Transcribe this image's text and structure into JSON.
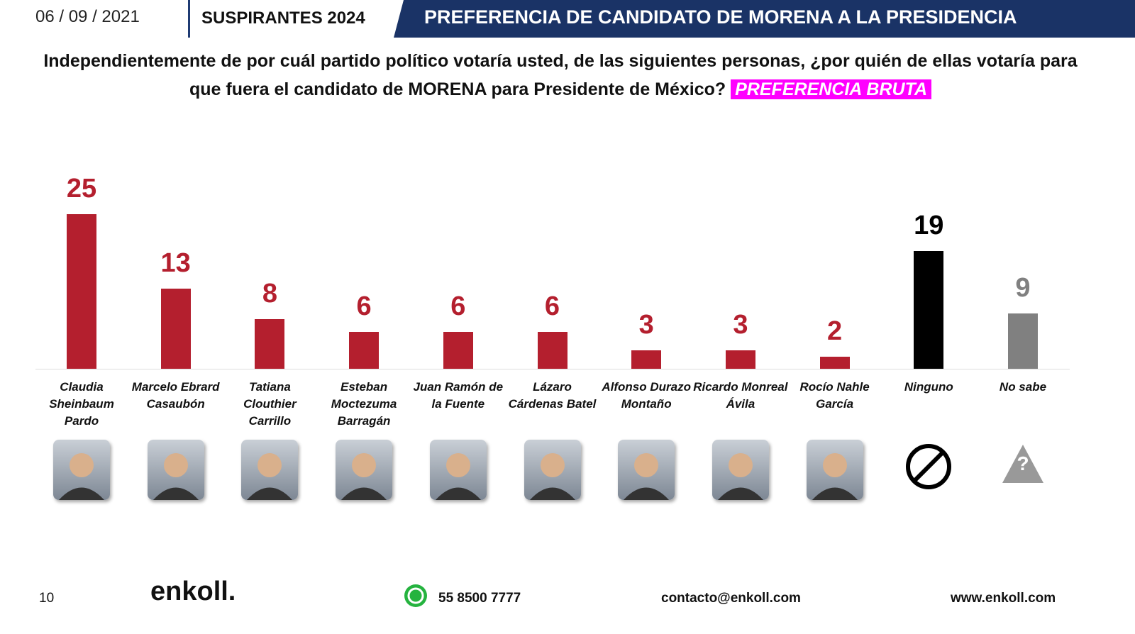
{
  "header": {
    "date": "06 / 09 / 2021",
    "section": "SUSPIRANTES 2024",
    "banner": "PREFERENCIA DE CANDIDATO DE MORENA A LA PRESIDENCIA"
  },
  "question": {
    "text": "Independientemente de por cuál partido político votaría usted, de las siguientes personas, ¿por quién de ellas votaría para que fuera el candidato de MORENA para Presidente de México?",
    "highlight": "PREFERENCIA BRUTA"
  },
  "chart_data": {
    "type": "bar",
    "categories": [
      "Claudia Sheinbaum Pardo",
      "Marcelo Ebrard Casaubón",
      "Tatiana Clouthier Carrillo",
      "Esteban Moctezuma Barragán",
      "Juan Ramón de la Fuente",
      "Lázaro Cárdenas Batel",
      "Alfonso Durazo Montaño",
      "Ricardo Monreal Ávila",
      "Rocío Nahle García",
      "Ninguno",
      "No sabe"
    ],
    "values": [
      25,
      13,
      8,
      6,
      6,
      6,
      3,
      3,
      2,
      19,
      9
    ],
    "colors": [
      "#b41f2e",
      "#b41f2e",
      "#b41f2e",
      "#b41f2e",
      "#b41f2e",
      "#b41f2e",
      "#b41f2e",
      "#b41f2e",
      "#b41f2e",
      "#000000",
      "#808080"
    ]
  },
  "no_sabe_icon": "?",
  "footer": {
    "page": "10",
    "logo": "enkoll.",
    "phone": "55 8500 7777",
    "email": "contacto@enkoll.com",
    "web": "www.enkoll.com"
  }
}
